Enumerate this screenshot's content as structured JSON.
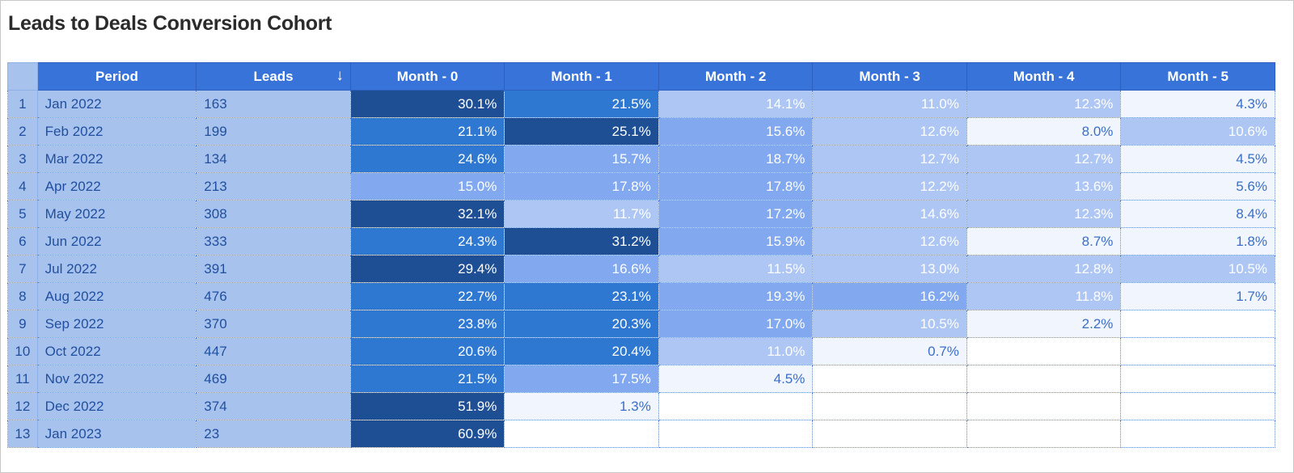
{
  "title": "Leads to Deals Conversion Cohort",
  "columns": {
    "period": "Period",
    "leads": "Leads",
    "sort_icon": "arrow-down-icon",
    "months": [
      "Month - 0",
      "Month - 1",
      "Month - 2",
      "Month - 3",
      "Month - 4",
      "Month - 5"
    ]
  },
  "colors": {
    "header_bg": "#3873d9",
    "index_bg": "#a8c2ee",
    "scale": [
      "#f1f5fd",
      "#adc6f3",
      "#82a9ef",
      "#2f78d2",
      "#1e4f95"
    ]
  },
  "rows": [
    {
      "index": "1",
      "period": "Jan 2022",
      "leads": "163",
      "values": [
        "30.1%",
        "21.5%",
        "14.1%",
        "11.0%",
        "12.3%",
        "4.3%"
      ]
    },
    {
      "index": "2",
      "period": "Feb 2022",
      "leads": "199",
      "values": [
        "21.1%",
        "25.1%",
        "15.6%",
        "12.6%",
        "8.0%",
        "10.6%"
      ]
    },
    {
      "index": "3",
      "period": "Mar 2022",
      "leads": "134",
      "values": [
        "24.6%",
        "15.7%",
        "18.7%",
        "12.7%",
        "12.7%",
        "4.5%"
      ]
    },
    {
      "index": "4",
      "period": "Apr 2022",
      "leads": "213",
      "values": [
        "15.0%",
        "17.8%",
        "17.8%",
        "12.2%",
        "13.6%",
        "5.6%"
      ]
    },
    {
      "index": "5",
      "period": "May 2022",
      "leads": "308",
      "values": [
        "32.1%",
        "11.7%",
        "17.2%",
        "14.6%",
        "12.3%",
        "8.4%"
      ]
    },
    {
      "index": "6",
      "period": "Jun 2022",
      "leads": "333",
      "values": [
        "24.3%",
        "31.2%",
        "15.9%",
        "12.6%",
        "8.7%",
        "1.8%"
      ]
    },
    {
      "index": "7",
      "period": "Jul 2022",
      "leads": "391",
      "values": [
        "29.4%",
        "16.6%",
        "11.5%",
        "13.0%",
        "12.8%",
        "10.5%"
      ]
    },
    {
      "index": "8",
      "period": "Aug 2022",
      "leads": "476",
      "values": [
        "22.7%",
        "23.1%",
        "19.3%",
        "16.2%",
        "11.8%",
        "1.7%"
      ]
    },
    {
      "index": "9",
      "period": "Sep 2022",
      "leads": "370",
      "values": [
        "23.8%",
        "20.3%",
        "17.0%",
        "10.5%",
        "2.2%",
        ""
      ]
    },
    {
      "index": "10",
      "period": "Oct 2022",
      "leads": "447",
      "values": [
        "20.6%",
        "20.4%",
        "11.0%",
        "0.7%",
        "",
        ""
      ]
    },
    {
      "index": "11",
      "period": "Nov 2022",
      "leads": "469",
      "values": [
        "21.5%",
        "17.5%",
        "4.5%",
        "",
        "",
        ""
      ]
    },
    {
      "index": "12",
      "period": "Dec 2022",
      "leads": "374",
      "values": [
        "51.9%",
        "1.3%",
        "",
        "",
        "",
        ""
      ]
    },
    {
      "index": "13",
      "period": "Jan 2023",
      "leads": "23",
      "values": [
        "60.9%",
        "",
        "",
        "",
        "",
        ""
      ]
    }
  ]
}
